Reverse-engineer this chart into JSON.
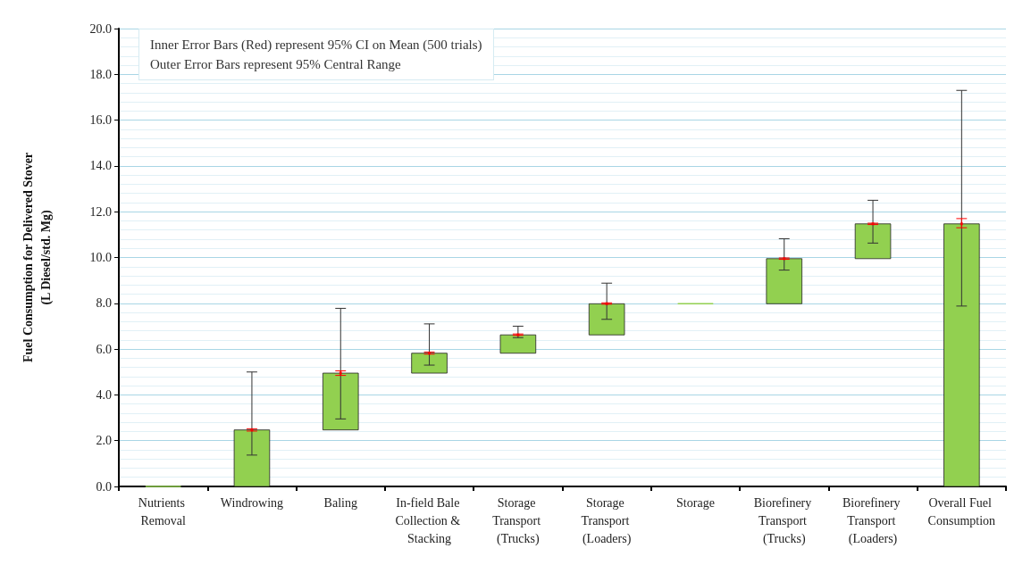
{
  "chart_data": {
    "type": "bar",
    "ylabel": "Fuel Consumption for Delivered Stover\n(L Diesel/std. Mg)",
    "annotations": [
      "Inner Error Bars (Red) represent 95% CI on Mean (500 trials)",
      "Outer Error Bars represent 95% Central Range"
    ],
    "categories": [
      "Nutrients Removal",
      "Windrowing",
      "Baling",
      "In-field Bale Collection & Stacking",
      "Storage Transport (Trucks)",
      "Storage Transport (Loaders)",
      "Storage",
      "Biorefinery Transport (Trucks)",
      "Biorefinery Transport (Loaders)",
      "Overall Fuel Consumption"
    ],
    "series": [
      {
        "color": "#92d050",
        "values": [
          0,
          2.47,
          2.48,
          0.87,
          0.8,
          1.36,
          0,
          1.97,
          1.52,
          11.47
        ],
        "base": [
          0,
          0,
          2.47,
          4.95,
          5.82,
          6.62,
          7.98,
          7.98,
          9.95,
          0
        ],
        "errors": [
          null,
          [
            1.37,
            5.0
          ],
          [
            2.95,
            7.78
          ],
          [
            5.3,
            7.1
          ],
          [
            6.5,
            7.0
          ],
          [
            7.3,
            8.88
          ],
          null,
          [
            9.45,
            10.82
          ],
          [
            10.63,
            12.5
          ],
          [
            7.88,
            17.3
          ]
        ]
      },
      {
        "type": "scatter",
        "color": "#ff0000",
        "x": [
          "Windrowing",
          "Baling",
          "In-field Bale Collection & Stacking",
          "Storage Transport (Trucks)",
          "Storage Transport (Loaders)",
          "Biorefinery Transport (Trucks)",
          "Biorefinery Transport (Loaders)",
          "Overall Fuel Consumption"
        ],
        "values": [
          2.47,
          4.95,
          5.82,
          6.62,
          7.98,
          9.95,
          11.47,
          11.47
        ],
        "errors": [
          [
            2.42,
            2.52
          ],
          [
            4.85,
            5.05
          ],
          [
            5.78,
            5.87
          ],
          [
            6.6,
            6.66
          ],
          [
            7.96,
            8.02
          ],
          [
            9.92,
            9.98
          ],
          [
            11.44,
            11.5
          ],
          [
            11.3,
            11.7
          ]
        ]
      }
    ],
    "ylim": [
      0,
      20
    ],
    "yticks": [
      {
        "value": 0,
        "label": "0.0"
      },
      {
        "value": 2,
        "label": "2.0"
      },
      {
        "value": 4,
        "label": "4.0"
      },
      {
        "value": 6,
        "label": "6.0"
      },
      {
        "value": 8,
        "label": "8.0"
      },
      {
        "value": 10,
        "label": "10.0"
      },
      {
        "value": 12,
        "label": "12.0"
      },
      {
        "value": 14,
        "label": "14.0"
      },
      {
        "value": 16,
        "label": "16.0"
      },
      {
        "value": 18,
        "label": "18.0"
      },
      {
        "value": 20,
        "label": "20.0"
      }
    ],
    "grid": "y",
    "marker": "square"
  }
}
